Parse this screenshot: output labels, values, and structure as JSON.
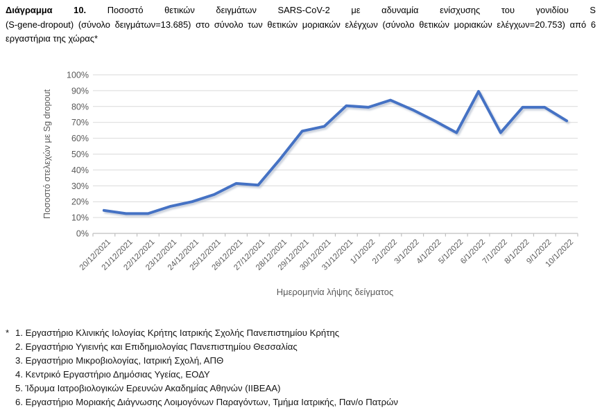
{
  "page": {
    "title": {
      "line1_bold": "Διάγραμμα 10.",
      "line1_rest": "Ποσοστό θετικών δειγμάτων SARS-CoV-2 με αδυναμία ενίσχυσης του γονιδίου S",
      "line2": "(S-gene-dropout) (σύνολο δειγμάτων=13.685) στο σύνολο των θετικών μοριακών ελέγχων (σύνολο θετικών μοριακών ελέγχων=20.753) από 6",
      "line3": "εργαστήρια της χώρας*"
    },
    "footnotes": {
      "marker": "*",
      "items": [
        "1. Εργαστήριο Κλινικής Ιολογίας Κρήτης Ιατρικής Σχολής Πανεπιστημίου Κρήτης",
        "2. Εργαστήριο Υγιεινής και Επιδημιολογίας Πανεπιστημίου Θεσσαλίας",
        "3. Εργαστήριο Μικροβιολογίας, Ιατρική Σχολή, ΑΠΘ",
        "4. Κεντρικό Εργαστήριο Δημόσιας Υγείας, ΕΟΔΥ",
        "5. Ίδρυμα Ιατροβιολογικών Ερευνών Ακαδημίας Αθηνών (ΙΙΒΕΑΑ)",
        "6. Εργαστήριο Μοριακής Διάγνωσης Λοιμογόνων Παραγόντων, Τμήμα Ιατρικής, Παν/ο Πατρών"
      ]
    }
  },
  "chart_data": {
    "type": "line",
    "title": "",
    "xlabel": "Ημερομηνία λήψης δείγματος",
    "ylabel": "Ποσοστό στελεχών με  Sg dropout",
    "categories": [
      "20/12/2021",
      "21/12/2021",
      "22/12/2021",
      "23/12/2021",
      "24/12/2021",
      "25/12/2021",
      "26/12/2021",
      "27/12/2021",
      "28/12/2021",
      "29/12/2021",
      "30/12/2021",
      "31/12/2021",
      "1/1/2022",
      "2/1/2022",
      "3/1/2022",
      "4/1/2022",
      "5/1/2022",
      "6/1/2022",
      "7/1/2022",
      "8/1/2022",
      "9/1/2022",
      "10/1/2022"
    ],
    "series": [
      {
        "name": "Ποσοστό στελεχών με Sg dropout",
        "values": [
          14.5,
          12.5,
          12.5,
          17,
          20,
          24.5,
          31.5,
          30.5,
          47,
          64.5,
          67.5,
          80.5,
          79.5,
          84,
          78,
          71,
          63.5,
          89.5,
          63.5,
          79.5,
          79.5,
          71
        ]
      }
    ],
    "ylim": [
      0,
      100
    ],
    "ytick_step": 10,
    "ytick_labels": [
      "0%",
      "10%",
      "20%",
      "30%",
      "40%",
      "50%",
      "60%",
      "70%",
      "80%",
      "90%",
      "100%"
    ],
    "grid": true,
    "legend_position": "none",
    "line_color": "#4472C4",
    "shadow_color": "#9aa7bd",
    "gridline_color": "#d9d9d9",
    "axis_color": "#bfbfbf",
    "label_color": "#595959"
  }
}
